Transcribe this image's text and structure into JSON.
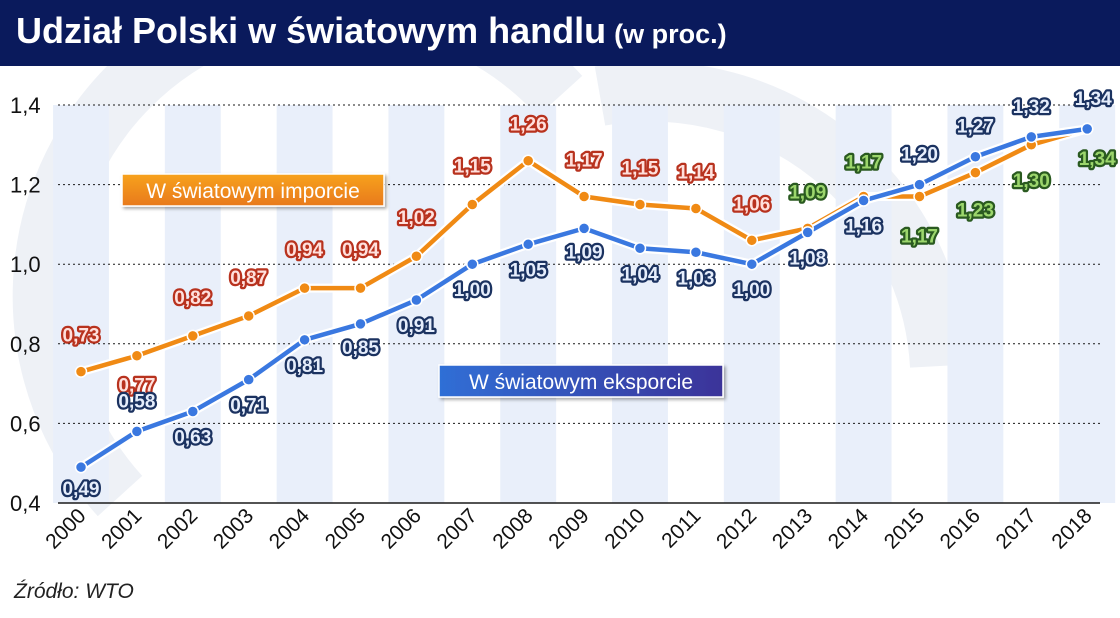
{
  "header": {
    "title": "Udział Polski w światowym handlu",
    "subtitle": "(w proc.)"
  },
  "source": "Źródło: WTO",
  "colors": {
    "header_bg": "#0a1a5c",
    "import_line": "#f08a14",
    "export_line": "#3a78e0",
    "import_label": "#ffe0dc",
    "export_label": "#e6eefc",
    "late_label": "#9cd66c",
    "stripe": "#e9effa"
  },
  "chart_data": {
    "type": "line",
    "categories": [
      "2000",
      "2001",
      "2002",
      "2003",
      "2004",
      "2005",
      "2006",
      "2007",
      "2008",
      "2009",
      "2010",
      "2011",
      "2012",
      "2013",
      "2014",
      "2015",
      "2016",
      "2017",
      "2018"
    ],
    "y_ticks": [
      "0,4",
      "0,6",
      "0,8",
      "1,0",
      "1,2",
      "1,4"
    ],
    "ylim": [
      0.4,
      1.4
    ],
    "grid": true,
    "series": [
      {
        "name": "W światowym imporcie",
        "key": "import",
        "values": [
          0.73,
          0.77,
          0.82,
          0.87,
          0.94,
          0.94,
          1.02,
          1.15,
          1.26,
          1.17,
          1.15,
          1.14,
          1.06,
          1.09,
          1.17,
          1.17,
          1.23,
          1.3,
          1.34
        ],
        "labels": [
          "0,73",
          "0,77",
          "0,82",
          "0,87",
          "0,94",
          "0,94",
          "1,02",
          "1,15",
          "1,26",
          "1,17",
          "1,15",
          "1,14",
          "1,06",
          "1,09",
          "1,17",
          "1,17",
          "1,23",
          "1,30",
          "1,34"
        ]
      },
      {
        "name": "W światowym eksporcie",
        "key": "export",
        "values": [
          0.49,
          0.58,
          0.63,
          0.71,
          0.81,
          0.85,
          0.91,
          1.0,
          1.05,
          1.09,
          1.04,
          1.03,
          1.0,
          1.08,
          1.16,
          1.2,
          1.27,
          1.32,
          1.34
        ],
        "labels": [
          "0,49",
          "0,58",
          "0,63",
          "0,71",
          "0,81",
          "0,85",
          "0,91",
          "1,00",
          "1,05",
          "1,09",
          "1,04",
          "1,03",
          "1,00",
          "1,08",
          "1,16",
          "1,20",
          "1,27",
          "1,32",
          "1,34"
        ]
      }
    ]
  }
}
